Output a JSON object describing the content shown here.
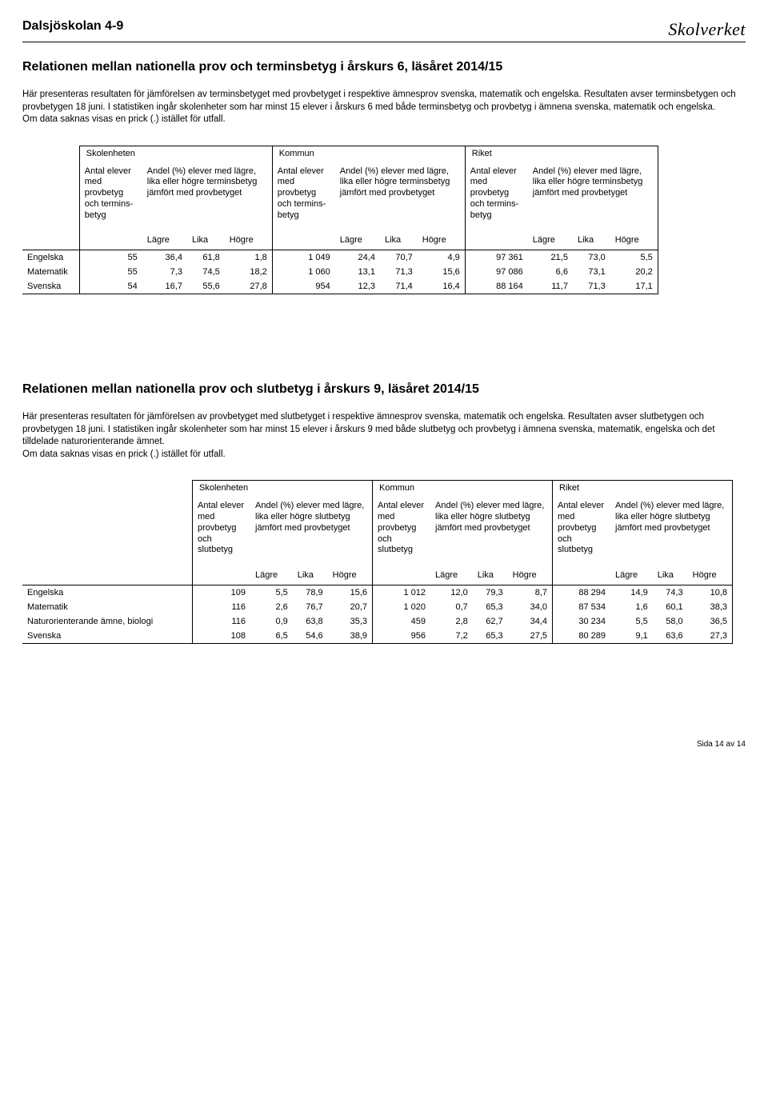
{
  "header": {
    "school": "Dalsjöskolan 4-9",
    "logo": "Skolverket"
  },
  "section1": {
    "title": "Relationen mellan nationella prov och terminsbetyg i årskurs 6, läsåret 2014/15",
    "intro": "Här presenteras resultaten för jämförelsen av terminsbetyget med provbetyget i respektive ämnesprov svenska, matematik och engelska. Resultaten avser terminsbetygen och provbetygen 18 juni. I statistiken ingår skolenheter som har minst 15 elever i årskurs 6 med både terminsbetyg och provbetyg i ämnena svenska, matematik och engelska.\nOm data saknas visas en prick (.) istället för utfall."
  },
  "section2": {
    "title": "Relationen mellan nationella prov och slutbetyg i årskurs 9, läsåret 2014/15",
    "intro": "Här presenteras resultaten för jämförelsen av provbetyget med slutbetyget i respektive ämnesprov svenska, matematik och engelska. Resultaten avser slutbetygen och provbetygen 18 juni. I statistiken ingår skolenheter som har minst 15 elever i årskurs 9 med både slutbetyg och provbetyg i ämnena svenska, matematik, engelska och det tilldelade naturorienterande ämnet.\nOm data saknas visas en prick (.) istället för utfall."
  },
  "groups": {
    "g1": "Skolenheten",
    "g2": "Kommun",
    "g3": "Riket"
  },
  "colhead1": {
    "count": "Antal elever med provbetyg och termins-betyg",
    "pct": "Andel (%) elever med lägre, lika eller högre terminsbetyg jämfört med provbetyget"
  },
  "colhead2": {
    "count": "Antal elever med provbetyg och slutbetyg",
    "pct": "Andel (%) elever med lägre, lika eller högre slutbetyg jämfört med provbetyget"
  },
  "sub": {
    "l": "Lägre",
    "k": "Lika",
    "h": "Högre"
  },
  "table1": {
    "rows": [
      {
        "label": "Engelska",
        "c1": "55",
        "l1": "36,4",
        "k1": "61,8",
        "h1": "1,8",
        "c2": "1 049",
        "l2": "24,4",
        "k2": "70,7",
        "h2": "4,9",
        "c3": "97 361",
        "l3": "21,5",
        "k3": "73,0",
        "h3": "5,5"
      },
      {
        "label": "Matematik",
        "c1": "55",
        "l1": "7,3",
        "k1": "74,5",
        "h1": "18,2",
        "c2": "1 060",
        "l2": "13,1",
        "k2": "71,3",
        "h2": "15,6",
        "c3": "97 086",
        "l3": "6,6",
        "k3": "73,1",
        "h3": "20,2"
      },
      {
        "label": "Svenska",
        "c1": "54",
        "l1": "16,7",
        "k1": "55,6",
        "h1": "27,8",
        "c2": "954",
        "l2": "12,3",
        "k2": "71,4",
        "h2": "16,4",
        "c3": "88 164",
        "l3": "11,7",
        "k3": "71,3",
        "h3": "17,1"
      }
    ]
  },
  "table2": {
    "rows": [
      {
        "label": "Engelska",
        "c1": "109",
        "l1": "5,5",
        "k1": "78,9",
        "h1": "15,6",
        "c2": "1 012",
        "l2": "12,0",
        "k2": "79,3",
        "h2": "8,7",
        "c3": "88 294",
        "l3": "14,9",
        "k3": "74,3",
        "h3": "10,8"
      },
      {
        "label": "Matematik",
        "c1": "116",
        "l1": "2,6",
        "k1": "76,7",
        "h1": "20,7",
        "c2": "1 020",
        "l2": "0,7",
        "k2": "65,3",
        "h2": "34,0",
        "c3": "87 534",
        "l3": "1,6",
        "k3": "60,1",
        "h3": "38,3"
      },
      {
        "label": "Naturorienterande ämne, biologi",
        "c1": "116",
        "l1": "0,9",
        "k1": "63,8",
        "h1": "35,3",
        "c2": "459",
        "l2": "2,8",
        "k2": "62,7",
        "h2": "34,4",
        "c3": "30 234",
        "l3": "5,5",
        "k3": "58,0",
        "h3": "36,5"
      },
      {
        "label": "Svenska",
        "c1": "108",
        "l1": "6,5",
        "k1": "54,6",
        "h1": "38,9",
        "c2": "956",
        "l2": "7,2",
        "k2": "65,3",
        "h2": "27,5",
        "c3": "80 289",
        "l3": "9,1",
        "k3": "63,6",
        "h3": "27,3"
      }
    ]
  },
  "footer": "Sida 14 av 14"
}
